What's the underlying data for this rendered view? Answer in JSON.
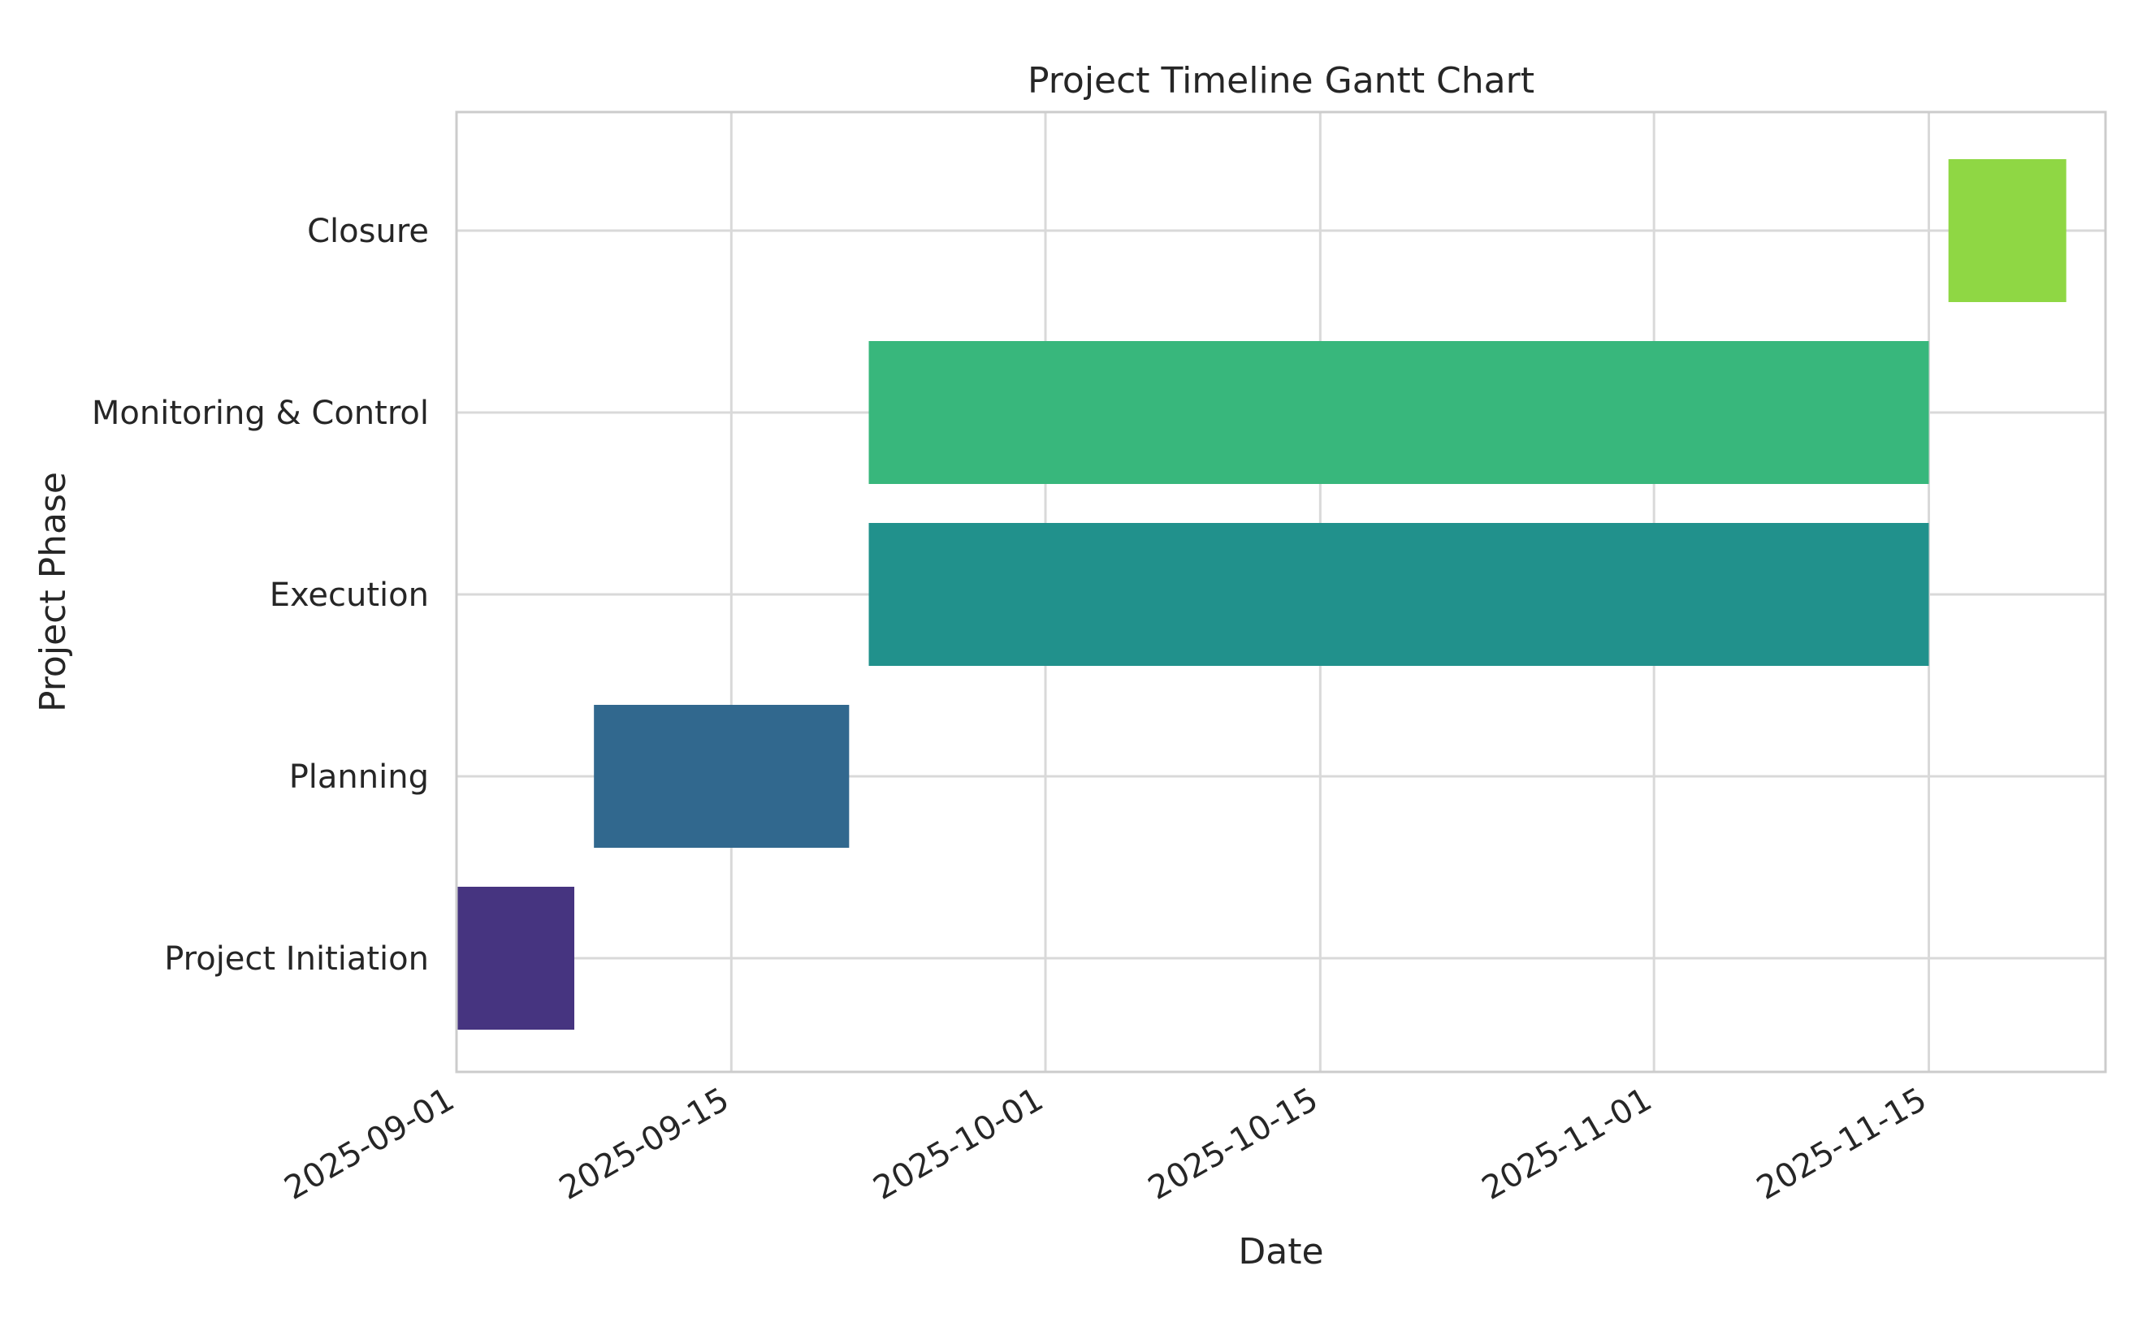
{
  "chart_data": {
    "type": "bar",
    "orientation": "horizontal",
    "title": "Project Timeline Gantt Chart",
    "xlabel": "Date",
    "ylabel": "Project Phase",
    "x_scale": "date",
    "xlim": [
      "2025-09-01",
      "2025-11-24"
    ],
    "x_ticks": [
      "2025-09-01",
      "2025-09-15",
      "2025-10-01",
      "2025-10-15",
      "2025-11-01",
      "2025-11-15"
    ],
    "grid": true,
    "legend": "none",
    "tasks": [
      {
        "phase": "Project Initiation",
        "start": "2025-09-01",
        "end": "2025-09-07",
        "color": "#463480"
      },
      {
        "phase": "Planning",
        "start": "2025-09-08",
        "end": "2025-09-21",
        "color": "#31688e"
      },
      {
        "phase": "Execution",
        "start": "2025-09-22",
        "end": "2025-11-15",
        "color": "#21918c"
      },
      {
        "phase": "Monitoring & Control",
        "start": "2025-09-22",
        "end": "2025-11-15",
        "color": "#38b77c"
      },
      {
        "phase": "Closure",
        "start": "2025-11-16",
        "end": "2025-11-22",
        "color": "#8fd744"
      }
    ]
  }
}
